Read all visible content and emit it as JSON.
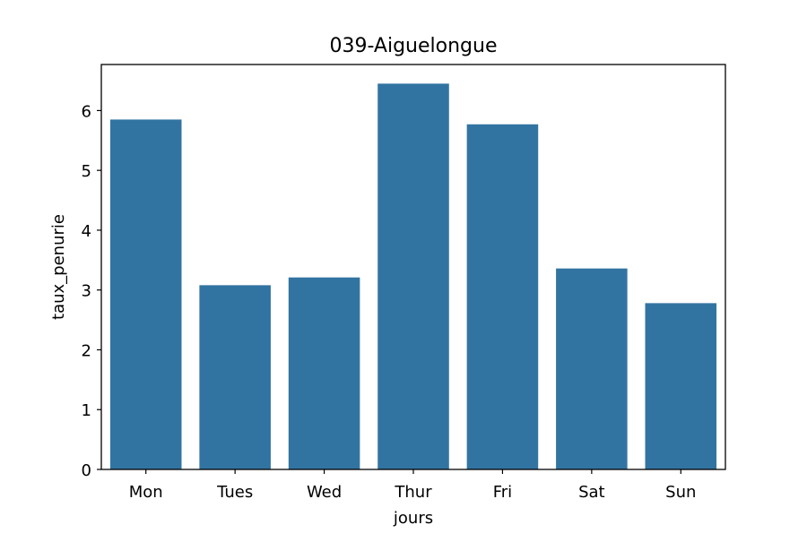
{
  "chart_data": {
    "type": "bar",
    "title": "039-Aiguelongue",
    "xlabel": "jours",
    "ylabel": "taux_penurie",
    "categories": [
      "Mon",
      "Tues",
      "Wed",
      "Thur",
      "Fri",
      "Sat",
      "Sun"
    ],
    "values": [
      5.85,
      3.08,
      3.21,
      6.45,
      5.77,
      3.36,
      2.78
    ],
    "ylim": [
      0,
      6.77
    ],
    "yticks": [
      0,
      1,
      2,
      3,
      4,
      5,
      6
    ],
    "grid": false,
    "legend": "none",
    "bar_color": "#3274a1"
  }
}
